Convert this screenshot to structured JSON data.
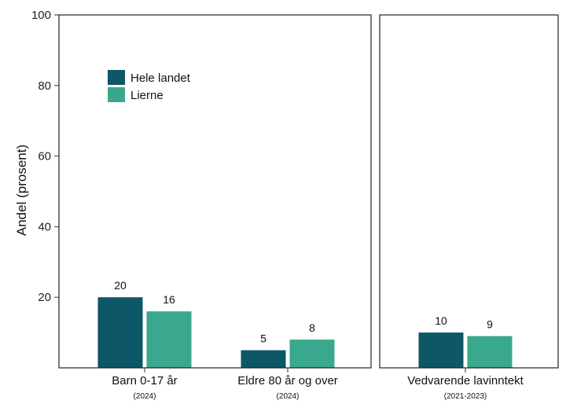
{
  "chart_data": {
    "type": "bar",
    "ylabel": "Andel (prosent)",
    "ylim": [
      0,
      100
    ],
    "yticks": [
      20,
      40,
      60,
      80,
      100
    ],
    "grid": false,
    "legend_position": "top-left",
    "colors": {
      "Hele landet": "#0d5766",
      "Lierne": "#3aa88c"
    },
    "series": [
      {
        "name": "Hele landet",
        "color": "#0d5766"
      },
      {
        "name": "Lierne",
        "color": "#3aa88c"
      }
    ],
    "panels": [
      {
        "categories": [
          {
            "label": "Barn 0-17 år",
            "sublabel": "(2024)",
            "values": [
              20,
              16
            ],
            "labels": [
              "20",
              "16"
            ]
          },
          {
            "label": "Eldre 80 år og over",
            "sublabel": "(2024)",
            "values": [
              5,
              8
            ],
            "labels": [
              "5",
              "8"
            ]
          }
        ]
      },
      {
        "categories": [
          {
            "label": "Vedvarende lavinntekt",
            "sublabel": "(2021-2023)",
            "values": [
              10,
              9
            ],
            "labels": [
              "10",
              "9"
            ]
          }
        ]
      }
    ]
  }
}
